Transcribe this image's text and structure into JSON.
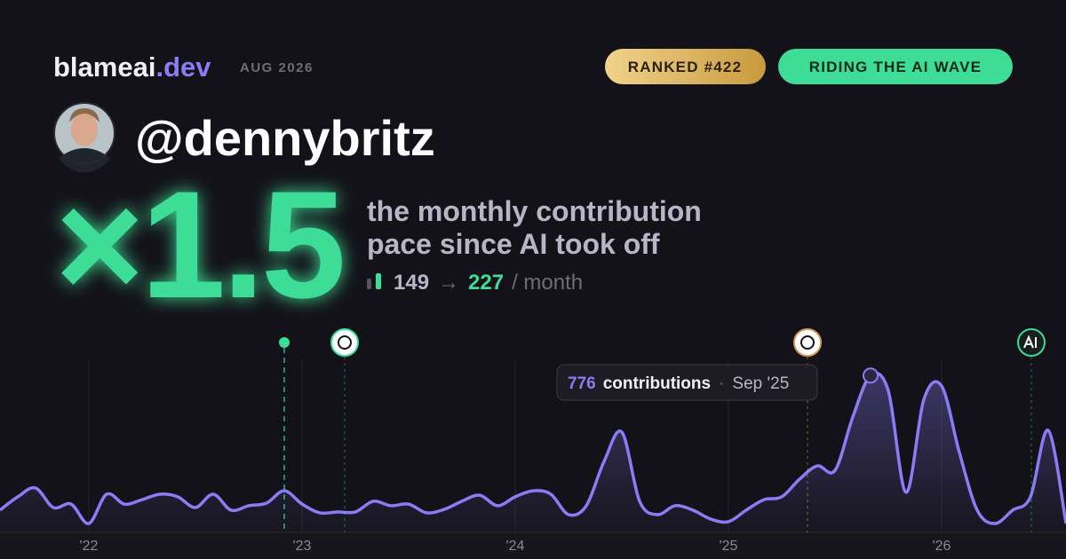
{
  "header": {
    "brand": "blameai",
    "brand_suffix": ".dev",
    "period": "AUG 2026",
    "badges": [
      "RANKED #422",
      "RIDING THE AI WAVE"
    ]
  },
  "profile": {
    "handle": "@dennybritz"
  },
  "headline": {
    "multiplier": "×1.5",
    "caption_line1": "the monthly contribution",
    "caption_line2": "pace since AI took off",
    "pace_before": 149,
    "arrow": "→",
    "pace_after": 227,
    "unit": "/ month"
  },
  "chart_data": {
    "type": "area",
    "categories": [
      null,
      null,
      null,
      null,
      null,
      "'22",
      null,
      null,
      null,
      null,
      null,
      null,
      null,
      null,
      null,
      null,
      null,
      "'23",
      null,
      null,
      null,
      null,
      null,
      null,
      null,
      null,
      null,
      null,
      null,
      "'24",
      null,
      null,
      null,
      null,
      null,
      null,
      null,
      null,
      null,
      null,
      null,
      "'25",
      null,
      null,
      null,
      null,
      null,
      null,
      null,
      null,
      null,
      null,
      null,
      "'26",
      null,
      null,
      null,
      null,
      null,
      null,
      null
    ],
    "series": [
      {
        "name": "contributions",
        "color": "#8b7cf6",
        "values": [
          110,
          176,
          220,
          123,
          140,
          44,
          189,
          140,
          162,
          189,
          176,
          123,
          189,
          110,
          132,
          145,
          206,
          140,
          97,
          101,
          101,
          154,
          132,
          140,
          97,
          114,
          154,
          184,
          132,
          176,
          206,
          189,
          88,
          132,
          351,
          496,
          154,
          88,
          132,
          110,
          66,
          53,
          110,
          162,
          176,
          263,
          329,
          307,
          571,
          776,
          700,
          198,
          658,
          724,
          395,
          110,
          44,
          110,
          176,
          505,
          44
        ]
      }
    ],
    "ylim": [
      0,
      900
    ],
    "tooltip": {
      "index": 49,
      "label": "contributions",
      "separator": "·",
      "date": "Sep '25"
    }
  }
}
